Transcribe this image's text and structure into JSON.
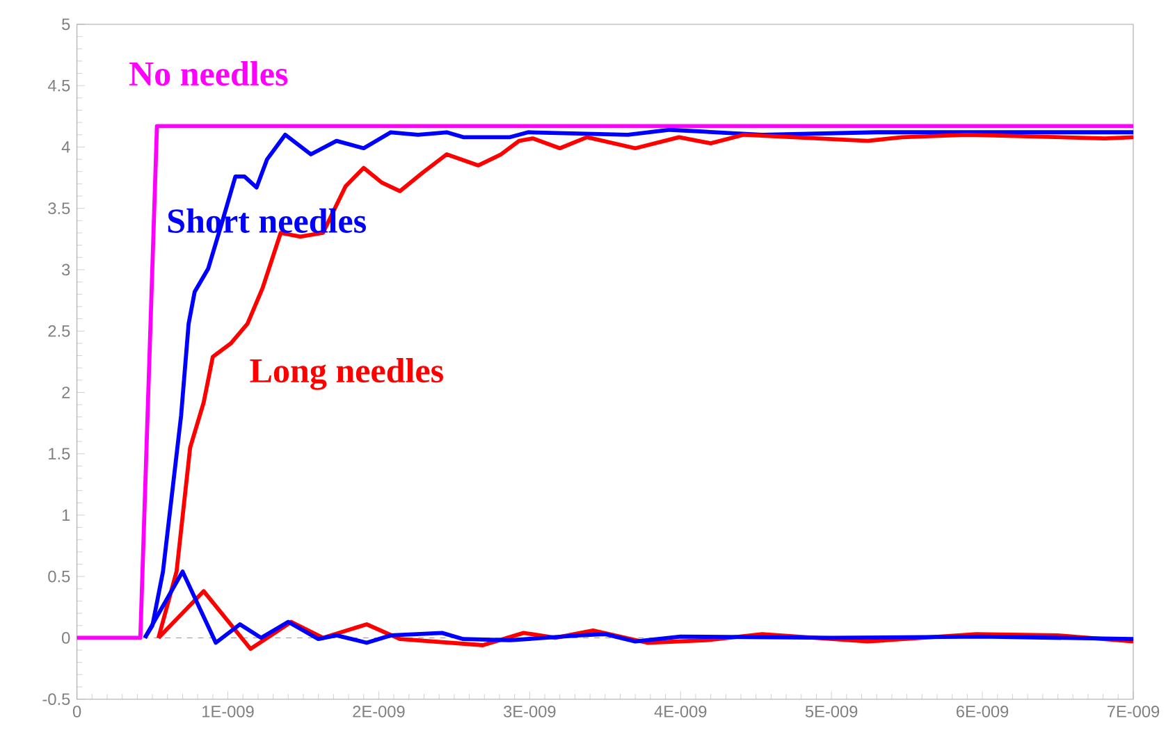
{
  "chart_data": {
    "type": "line",
    "xlim": [
      0,
      7e-09
    ],
    "ylim": [
      -0.5,
      5
    ],
    "xticks": [
      0,
      {
        "value": 1e-09,
        "label": "1E-009"
      },
      {
        "value": 2e-09,
        "label": "2E-009"
      },
      {
        "value": 3e-09,
        "label": "3E-009"
      },
      {
        "value": 4e-09,
        "label": "4E-009"
      },
      {
        "value": 5e-09,
        "label": "5E-009"
      },
      {
        "value": 6e-09,
        "label": "6E-009"
      },
      {
        "value": 7e-09,
        "label": "7E-009"
      }
    ],
    "yticks": [
      -0.5,
      0,
      0.5,
      1,
      1.5,
      2,
      2.5,
      3,
      3.5,
      4,
      4.5,
      5
    ],
    "grid": false,
    "legend": false,
    "marker": "none",
    "line_style": "solid",
    "ref_lines": [
      {
        "axis": "y",
        "value": 0,
        "color": "#999999",
        "line_style": "dashed"
      }
    ],
    "series": [
      {
        "name": "No needles",
        "color": "#ff00ff",
        "x": [
          0,
          4.2e-10,
          5.3e-10,
          7e-09
        ],
        "values": [
          0,
          0,
          4.17,
          4.17
        ]
      },
      {
        "name": "Short needles",
        "color": "#0000ff",
        "x": [
          4.5e-10,
          5e-10,
          5.7e-10,
          6.9e-10,
          7.4e-10,
          7.8e-10,
          8.7e-10,
          9.6e-10,
          1.05e-09,
          1.11e-09,
          1.19e-09,
          1.26e-09,
          1.38e-09,
          1.55e-09,
          1.72e-09,
          1.9e-09,
          2.08e-09,
          2.26e-09,
          2.45e-09,
          2.56e-09,
          2.87e-09,
          2.99e-09,
          3.65e-09,
          3.93e-09,
          4.54e-09,
          5.3e-09,
          7e-09
        ],
        "values": [
          0,
          0.1,
          0.54,
          1.81,
          2.56,
          2.82,
          3.01,
          3.38,
          3.76,
          3.76,
          3.67,
          3.9,
          4.1,
          3.94,
          4.05,
          3.99,
          4.12,
          4.1,
          4.12,
          4.08,
          4.08,
          4.12,
          4.1,
          4.14,
          4.1,
          4.12,
          4.12
        ]
      },
      {
        "name": "Long needles",
        "color": "#ff0000",
        "x": [
          5.4e-10,
          6.6e-10,
          7.5e-10,
          8.4e-10,
          9e-10,
          1.02e-09,
          1.13e-09,
          1.23e-09,
          1.35e-09,
          1.48e-09,
          1.63e-09,
          1.78e-09,
          1.9e-09,
          2.02e-09,
          2.14e-09,
          2.29e-09,
          2.45e-09,
          2.66e-09,
          2.81e-09,
          2.93e-09,
          3.02e-09,
          3.2e-09,
          3.38e-09,
          3.7e-09,
          3.99e-09,
          4.2e-09,
          4.42e-09,
          5.24e-09,
          5.47e-09,
          5.9e-09,
          6.81e-09,
          7e-09
        ],
        "values": [
          0,
          0.54,
          1.55,
          1.92,
          2.29,
          2.4,
          2.56,
          2.85,
          3.3,
          3.27,
          3.3,
          3.68,
          3.83,
          3.71,
          3.64,
          3.79,
          3.94,
          3.85,
          3.94,
          4.05,
          4.07,
          3.99,
          4.08,
          3.99,
          4.08,
          4.03,
          4.1,
          4.05,
          4.08,
          4.1,
          4.07,
          4.08
        ]
      },
      {
        "color": "#ff0000",
        "x": [
          5.4e-10,
          8.4e-10,
          1.15e-09,
          1.42e-09,
          1.63e-09,
          1.92e-09,
          2.14e-09,
          2.69e-09,
          2.96e-09,
          3.17e-09,
          3.42e-09,
          3.78e-09,
          4.17e-09,
          4.54e-09,
          5.24e-09,
          5.96e-09,
          6.5e-09,
          7e-09
        ],
        "values": [
          0,
          0.38,
          -0.09,
          0.13,
          0,
          0.11,
          -0.01,
          -0.06,
          0.04,
          0,
          0.06,
          -0.04,
          -0.02,
          0.03,
          -0.03,
          0.03,
          0.02,
          -0.03
        ]
      },
      {
        "color": "#0000ff",
        "x": [
          4.5e-10,
          7e-10,
          9.2e-10,
          1.08e-09,
          1.22e-09,
          1.4e-09,
          1.6e-09,
          1.72e-09,
          1.92e-09,
          2.08e-09,
          2.42e-09,
          2.56e-09,
          2.87e-09,
          3.33e-09,
          3.5e-09,
          3.7e-09,
          4e-09,
          5e-09,
          6e-09,
          7e-09
        ],
        "values": [
          0,
          0.54,
          -0.04,
          0.11,
          0,
          0.13,
          -0.01,
          0.02,
          -0.04,
          0.02,
          0.04,
          -0.01,
          -0.02,
          0.02,
          0.03,
          -0.03,
          0.01,
          0,
          0.01,
          -0.01
        ]
      }
    ]
  }
}
